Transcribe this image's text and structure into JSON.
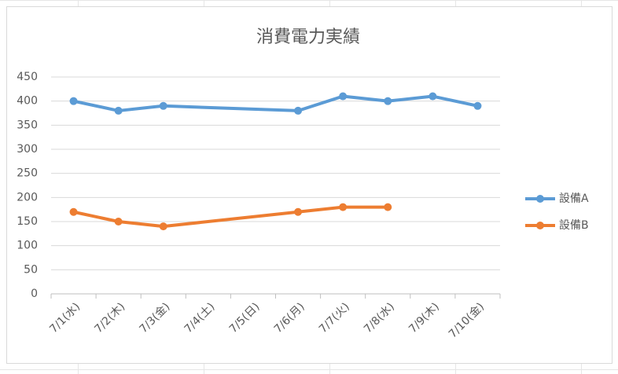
{
  "chart_data": {
    "type": "line",
    "title": "消費電力実績",
    "categories": [
      "7/1(水)",
      "7/2(木)",
      "7/3(金)",
      "7/4(土)",
      "7/5(日)",
      "7/6(月)",
      "7/7(火)",
      "7/8(水)",
      "7/9(木)",
      "7/10(金)"
    ],
    "series": [
      {
        "name": "設備A",
        "color": "#5b9bd5",
        "values": [
          400,
          380,
          390,
          null,
          null,
          380,
          410,
          400,
          410,
          390
        ]
      },
      {
        "name": "設備B",
        "color": "#ed7d31",
        "values": [
          170,
          150,
          140,
          null,
          null,
          170,
          180,
          180,
          null,
          null
        ]
      }
    ],
    "ylim": [
      0,
      450
    ],
    "yticks": [
      0,
      50,
      100,
      150,
      200,
      250,
      300,
      350,
      400,
      450
    ],
    "grid": true,
    "legend": "right"
  }
}
